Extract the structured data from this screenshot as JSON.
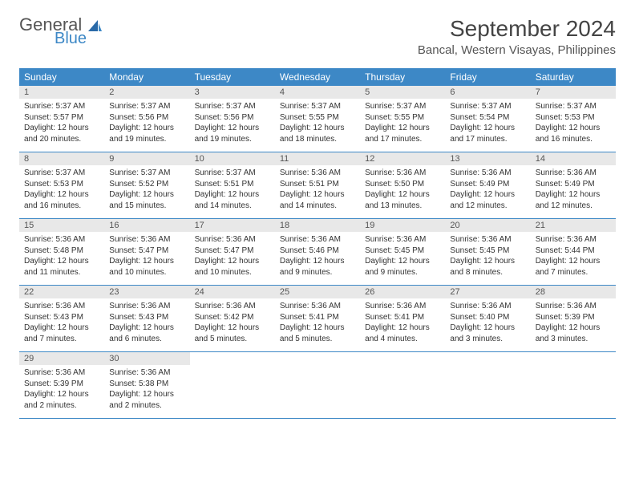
{
  "logo": {
    "general": "General",
    "blue": "Blue"
  },
  "title": "September 2024",
  "location": "Bancal, Western Visayas, Philippines",
  "colors": {
    "header_bg": "#3d88c6",
    "daynum_bg": "#e8e8e8",
    "border": "#3d88c6",
    "text": "#333333",
    "title_text": "#444444"
  },
  "day_headers": [
    "Sunday",
    "Monday",
    "Tuesday",
    "Wednesday",
    "Thursday",
    "Friday",
    "Saturday"
  ],
  "weeks": [
    [
      {
        "num": "1",
        "sunrise": "Sunrise: 5:37 AM",
        "sunset": "Sunset: 5:57 PM",
        "daylight1": "Daylight: 12 hours",
        "daylight2": "and 20 minutes."
      },
      {
        "num": "2",
        "sunrise": "Sunrise: 5:37 AM",
        "sunset": "Sunset: 5:56 PM",
        "daylight1": "Daylight: 12 hours",
        "daylight2": "and 19 minutes."
      },
      {
        "num": "3",
        "sunrise": "Sunrise: 5:37 AM",
        "sunset": "Sunset: 5:56 PM",
        "daylight1": "Daylight: 12 hours",
        "daylight2": "and 19 minutes."
      },
      {
        "num": "4",
        "sunrise": "Sunrise: 5:37 AM",
        "sunset": "Sunset: 5:55 PM",
        "daylight1": "Daylight: 12 hours",
        "daylight2": "and 18 minutes."
      },
      {
        "num": "5",
        "sunrise": "Sunrise: 5:37 AM",
        "sunset": "Sunset: 5:55 PM",
        "daylight1": "Daylight: 12 hours",
        "daylight2": "and 17 minutes."
      },
      {
        "num": "6",
        "sunrise": "Sunrise: 5:37 AM",
        "sunset": "Sunset: 5:54 PM",
        "daylight1": "Daylight: 12 hours",
        "daylight2": "and 17 minutes."
      },
      {
        "num": "7",
        "sunrise": "Sunrise: 5:37 AM",
        "sunset": "Sunset: 5:53 PM",
        "daylight1": "Daylight: 12 hours",
        "daylight2": "and 16 minutes."
      }
    ],
    [
      {
        "num": "8",
        "sunrise": "Sunrise: 5:37 AM",
        "sunset": "Sunset: 5:53 PM",
        "daylight1": "Daylight: 12 hours",
        "daylight2": "and 16 minutes."
      },
      {
        "num": "9",
        "sunrise": "Sunrise: 5:37 AM",
        "sunset": "Sunset: 5:52 PM",
        "daylight1": "Daylight: 12 hours",
        "daylight2": "and 15 minutes."
      },
      {
        "num": "10",
        "sunrise": "Sunrise: 5:37 AM",
        "sunset": "Sunset: 5:51 PM",
        "daylight1": "Daylight: 12 hours",
        "daylight2": "and 14 minutes."
      },
      {
        "num": "11",
        "sunrise": "Sunrise: 5:36 AM",
        "sunset": "Sunset: 5:51 PM",
        "daylight1": "Daylight: 12 hours",
        "daylight2": "and 14 minutes."
      },
      {
        "num": "12",
        "sunrise": "Sunrise: 5:36 AM",
        "sunset": "Sunset: 5:50 PM",
        "daylight1": "Daylight: 12 hours",
        "daylight2": "and 13 minutes."
      },
      {
        "num": "13",
        "sunrise": "Sunrise: 5:36 AM",
        "sunset": "Sunset: 5:49 PM",
        "daylight1": "Daylight: 12 hours",
        "daylight2": "and 12 minutes."
      },
      {
        "num": "14",
        "sunrise": "Sunrise: 5:36 AM",
        "sunset": "Sunset: 5:49 PM",
        "daylight1": "Daylight: 12 hours",
        "daylight2": "and 12 minutes."
      }
    ],
    [
      {
        "num": "15",
        "sunrise": "Sunrise: 5:36 AM",
        "sunset": "Sunset: 5:48 PM",
        "daylight1": "Daylight: 12 hours",
        "daylight2": "and 11 minutes."
      },
      {
        "num": "16",
        "sunrise": "Sunrise: 5:36 AM",
        "sunset": "Sunset: 5:47 PM",
        "daylight1": "Daylight: 12 hours",
        "daylight2": "and 10 minutes."
      },
      {
        "num": "17",
        "sunrise": "Sunrise: 5:36 AM",
        "sunset": "Sunset: 5:47 PM",
        "daylight1": "Daylight: 12 hours",
        "daylight2": "and 10 minutes."
      },
      {
        "num": "18",
        "sunrise": "Sunrise: 5:36 AM",
        "sunset": "Sunset: 5:46 PM",
        "daylight1": "Daylight: 12 hours",
        "daylight2": "and 9 minutes."
      },
      {
        "num": "19",
        "sunrise": "Sunrise: 5:36 AM",
        "sunset": "Sunset: 5:45 PM",
        "daylight1": "Daylight: 12 hours",
        "daylight2": "and 9 minutes."
      },
      {
        "num": "20",
        "sunrise": "Sunrise: 5:36 AM",
        "sunset": "Sunset: 5:45 PM",
        "daylight1": "Daylight: 12 hours",
        "daylight2": "and 8 minutes."
      },
      {
        "num": "21",
        "sunrise": "Sunrise: 5:36 AM",
        "sunset": "Sunset: 5:44 PM",
        "daylight1": "Daylight: 12 hours",
        "daylight2": "and 7 minutes."
      }
    ],
    [
      {
        "num": "22",
        "sunrise": "Sunrise: 5:36 AM",
        "sunset": "Sunset: 5:43 PM",
        "daylight1": "Daylight: 12 hours",
        "daylight2": "and 7 minutes."
      },
      {
        "num": "23",
        "sunrise": "Sunrise: 5:36 AM",
        "sunset": "Sunset: 5:43 PM",
        "daylight1": "Daylight: 12 hours",
        "daylight2": "and 6 minutes."
      },
      {
        "num": "24",
        "sunrise": "Sunrise: 5:36 AM",
        "sunset": "Sunset: 5:42 PM",
        "daylight1": "Daylight: 12 hours",
        "daylight2": "and 5 minutes."
      },
      {
        "num": "25",
        "sunrise": "Sunrise: 5:36 AM",
        "sunset": "Sunset: 5:41 PM",
        "daylight1": "Daylight: 12 hours",
        "daylight2": "and 5 minutes."
      },
      {
        "num": "26",
        "sunrise": "Sunrise: 5:36 AM",
        "sunset": "Sunset: 5:41 PM",
        "daylight1": "Daylight: 12 hours",
        "daylight2": "and 4 minutes."
      },
      {
        "num": "27",
        "sunrise": "Sunrise: 5:36 AM",
        "sunset": "Sunset: 5:40 PM",
        "daylight1": "Daylight: 12 hours",
        "daylight2": "and 3 minutes."
      },
      {
        "num": "28",
        "sunrise": "Sunrise: 5:36 AM",
        "sunset": "Sunset: 5:39 PM",
        "daylight1": "Daylight: 12 hours",
        "daylight2": "and 3 minutes."
      }
    ],
    [
      {
        "num": "29",
        "sunrise": "Sunrise: 5:36 AM",
        "sunset": "Sunset: 5:39 PM",
        "daylight1": "Daylight: 12 hours",
        "daylight2": "and 2 minutes."
      },
      {
        "num": "30",
        "sunrise": "Sunrise: 5:36 AM",
        "sunset": "Sunset: 5:38 PM",
        "daylight1": "Daylight: 12 hours",
        "daylight2": "and 2 minutes."
      },
      null,
      null,
      null,
      null,
      null
    ]
  ]
}
